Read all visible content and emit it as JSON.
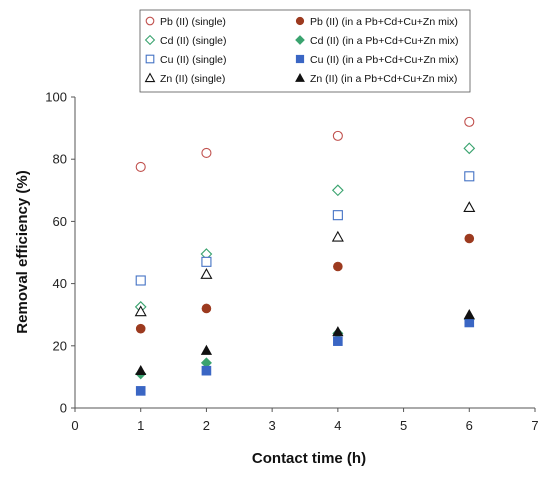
{
  "chart_data": {
    "type": "scatter",
    "title": "",
    "xlabel": "Contact time (h)",
    "ylabel": "Removal efficiency (%)",
    "xlim": [
      0,
      7
    ],
    "ylim": [
      0,
      100
    ],
    "x_ticks": [
      "0",
      "1",
      "2",
      "3",
      "4",
      "5",
      "6",
      "7"
    ],
    "y_ticks": [
      "0",
      "20",
      "40",
      "60",
      "80",
      "100"
    ],
    "grid": false,
    "legend_position": "top",
    "x": [
      1,
      2,
      4,
      6
    ],
    "series": [
      {
        "name": "Pb (II) (single)",
        "marker": "circle-open",
        "color": "#c0504d",
        "values": [
          77.5,
          82,
          87.5,
          92
        ]
      },
      {
        "name": "Pb (II) (in a Pb+Cd+Cu+Zn mix)",
        "marker": "circle-filled",
        "color": "#9c3a1f",
        "values": [
          25.5,
          32,
          45.5,
          54.5
        ]
      },
      {
        "name": "Cd (II) (single)",
        "marker": "diamond-open",
        "color": "#3aa36f",
        "values": [
          32.5,
          49.5,
          70,
          83.5
        ]
      },
      {
        "name": "Cd (II) (in a Pb+Cd+Cu+Zn mix)",
        "marker": "diamond-filled",
        "color": "#3aa36f",
        "values": [
          11,
          14.5,
          24,
          28.5
        ]
      },
      {
        "name": "Cu (II) (single)",
        "marker": "square-open",
        "color": "#4472c4",
        "values": [
          41,
          47,
          62,
          74.5
        ]
      },
      {
        "name": "Cu (II) (in a Pb+Cd+Cu+Zn mix)",
        "marker": "square-filled",
        "color": "#3a66c4",
        "values": [
          5.5,
          12,
          21.5,
          27.5
        ]
      },
      {
        "name": "Zn (II) (single)",
        "marker": "triangle-open",
        "color": "#111111",
        "values": [
          31,
          43,
          55,
          64.5
        ]
      },
      {
        "name": "Zn (II) (in a Pb+Cd+Cu+Zn mix)",
        "marker": "triangle-filled",
        "color": "#111111",
        "values": [
          12,
          18.5,
          24.5,
          30
        ]
      }
    ]
  }
}
